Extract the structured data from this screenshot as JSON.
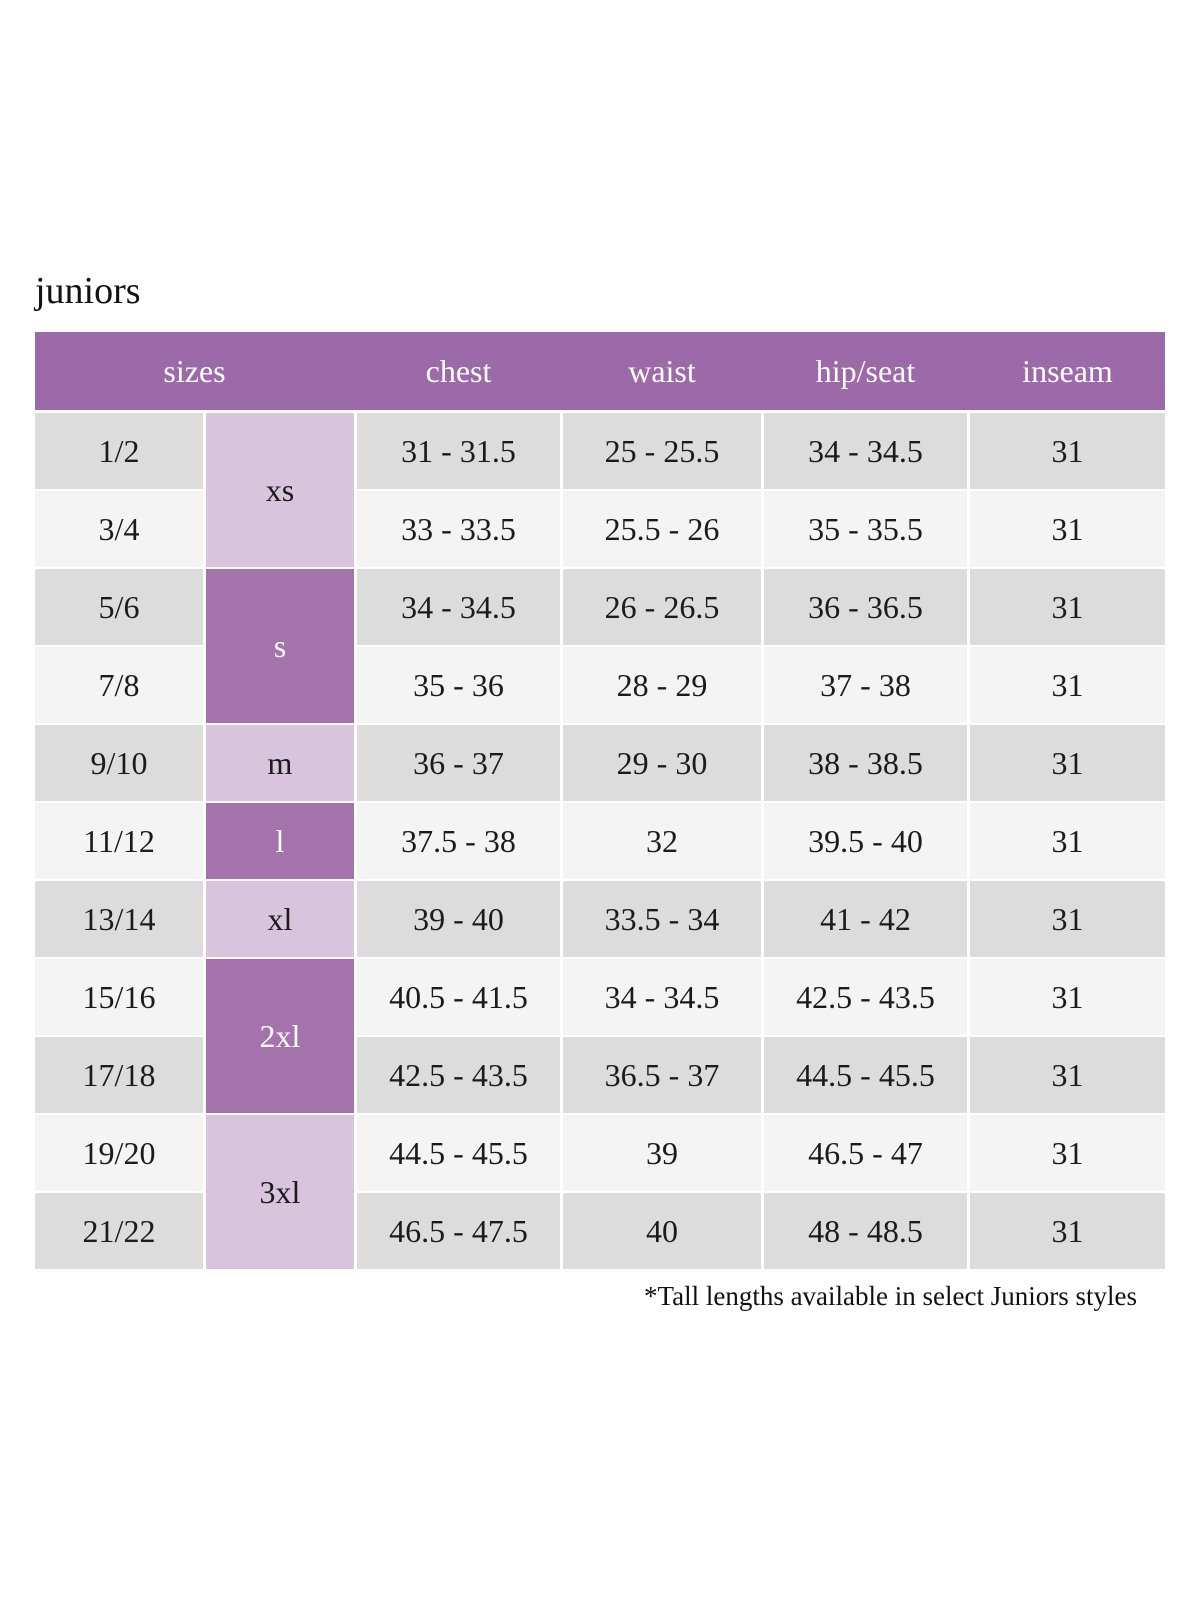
{
  "page": {
    "title": "juniors",
    "footnote": "*Tall lengths available in select Juniors styles"
  },
  "colors": {
    "header_purple": "#9c6aa8",
    "size_group_dark_purple": "#a473ac",
    "size_group_light_purple": "#d8c4dd",
    "row_gray": "#dcdcdc",
    "row_light": "#f4f4f4",
    "header_text": "#ffffff",
    "body_text": "#1b1b1b"
  },
  "chart_data": {
    "type": "table",
    "title": "juniors",
    "columns": [
      "sizes",
      "chest",
      "waist",
      "hip/seat",
      "inseam"
    ],
    "size_groups": [
      {
        "label": "xs",
        "spans_rows": 2,
        "shade": "light"
      },
      {
        "label": "s",
        "spans_rows": 2,
        "shade": "dark"
      },
      {
        "label": "m",
        "spans_rows": 1,
        "shade": "light"
      },
      {
        "label": "l",
        "spans_rows": 1,
        "shade": "dark"
      },
      {
        "label": "xl",
        "spans_rows": 1,
        "shade": "light"
      },
      {
        "label": "2xl",
        "spans_rows": 2,
        "shade": "dark"
      },
      {
        "label": "3xl",
        "spans_rows": 2,
        "shade": "light"
      }
    ],
    "rows": [
      {
        "size": "1/2",
        "size_group": "xs",
        "chest": "31 - 31.5",
        "waist": "25 - 25.5",
        "hip_seat": "34 - 34.5",
        "inseam": "31"
      },
      {
        "size": "3/4",
        "size_group": "xs",
        "chest": "33 - 33.5",
        "waist": "25.5 - 26",
        "hip_seat": "35 - 35.5",
        "inseam": "31"
      },
      {
        "size": "5/6",
        "size_group": "s",
        "chest": "34 - 34.5",
        "waist": "26 - 26.5",
        "hip_seat": "36 - 36.5",
        "inseam": "31"
      },
      {
        "size": "7/8",
        "size_group": "s",
        "chest": "35 - 36",
        "waist": "28 - 29",
        "hip_seat": "37 - 38",
        "inseam": "31"
      },
      {
        "size": "9/10",
        "size_group": "m",
        "chest": "36 - 37",
        "waist": "29 - 30",
        "hip_seat": "38 - 38.5",
        "inseam": "31"
      },
      {
        "size": "11/12",
        "size_group": "l",
        "chest": "37.5 - 38",
        "waist": "32",
        "hip_seat": "39.5 - 40",
        "inseam": "31"
      },
      {
        "size": "13/14",
        "size_group": "xl",
        "chest": "39 - 40",
        "waist": "33.5 - 34",
        "hip_seat": "41 - 42",
        "inseam": "31"
      },
      {
        "size": "15/16",
        "size_group": "2xl",
        "chest": "40.5 - 41.5",
        "waist": "34 - 34.5",
        "hip_seat": "42.5 - 43.5",
        "inseam": "31"
      },
      {
        "size": "17/18",
        "size_group": "2xl",
        "chest": "42.5 - 43.5",
        "waist": "36.5 - 37",
        "hip_seat": "44.5 - 45.5",
        "inseam": "31"
      },
      {
        "size": "19/20",
        "size_group": "3xl",
        "chest": "44.5 - 45.5",
        "waist": "39",
        "hip_seat": "46.5 - 47",
        "inseam": "31"
      },
      {
        "size": "21/22",
        "size_group": "3xl",
        "chest": "46.5 - 47.5",
        "waist": "40",
        "hip_seat": "48 - 48.5",
        "inseam": "31"
      }
    ],
    "footnote": "*Tall lengths available in select Juniors styles"
  }
}
